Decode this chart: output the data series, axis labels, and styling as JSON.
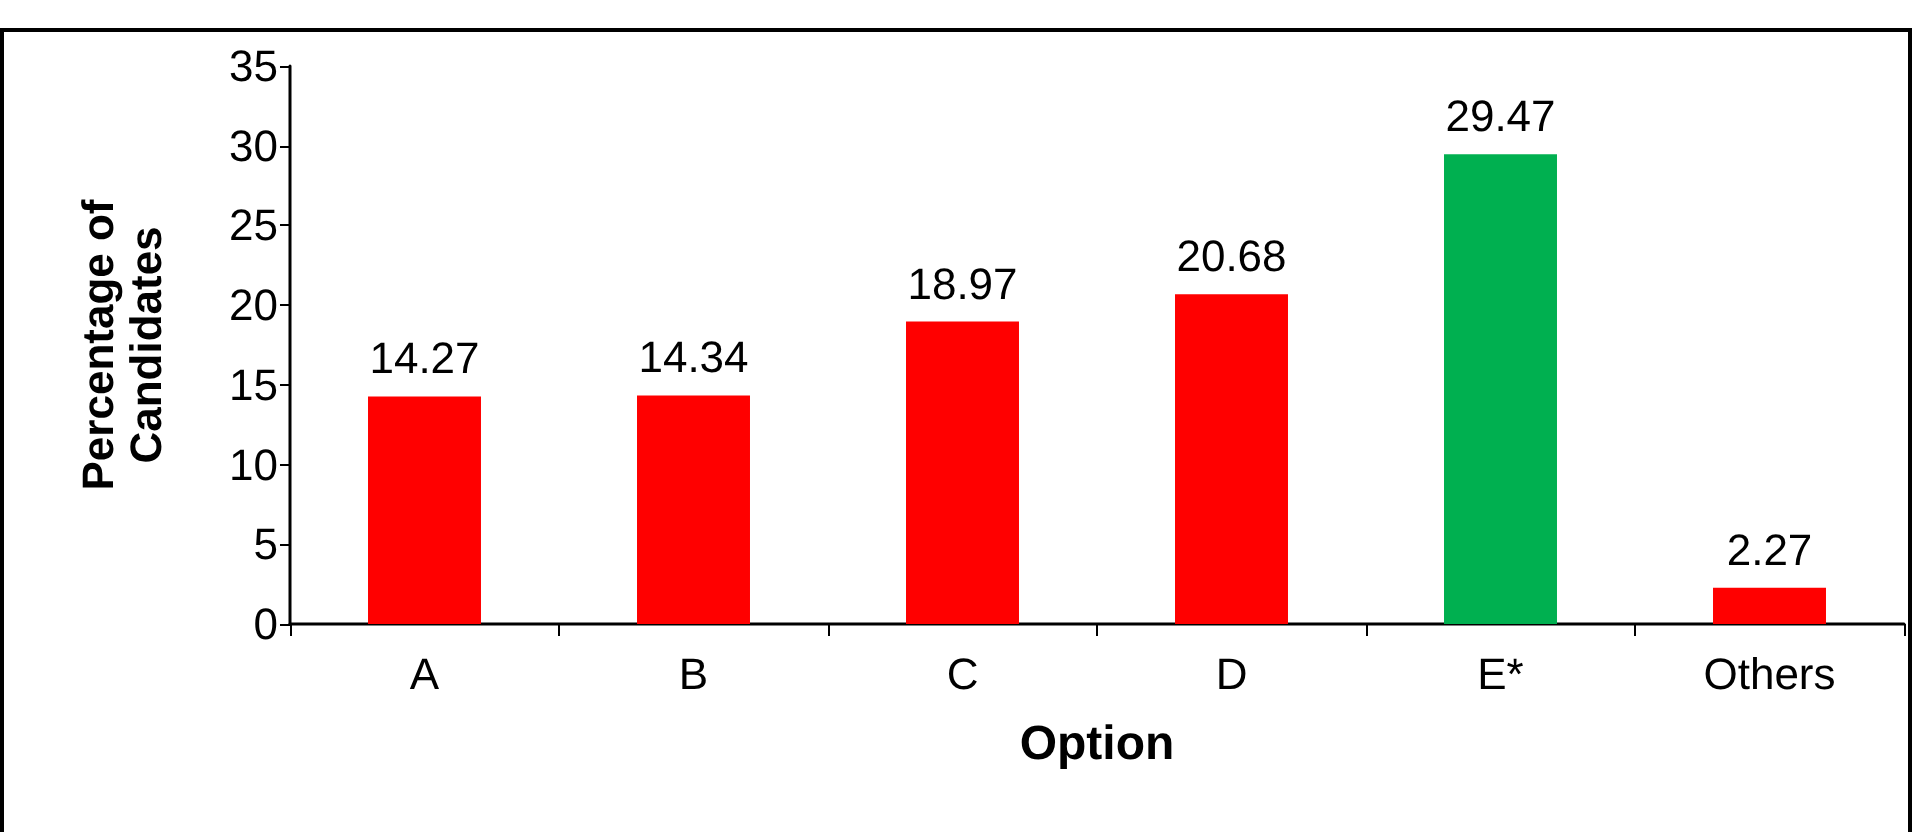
{
  "chart_data": {
    "type": "bar",
    "xlabel": "Option",
    "ylabel": "Percentage of Candidates",
    "categories": [
      "A",
      "B",
      "C",
      "D",
      "E*",
      "Others"
    ],
    "values": [
      14.27,
      14.34,
      18.97,
      20.68,
      29.47,
      2.27
    ],
    "colors": [
      "#ff0000",
      "#ff0000",
      "#ff0000",
      "#ff0000",
      "#00b050",
      "#ff0000"
    ],
    "ylim": [
      0,
      35
    ],
    "yticks": [
      0,
      5,
      10,
      15,
      20,
      25,
      30,
      35
    ],
    "data_labels": true
  }
}
